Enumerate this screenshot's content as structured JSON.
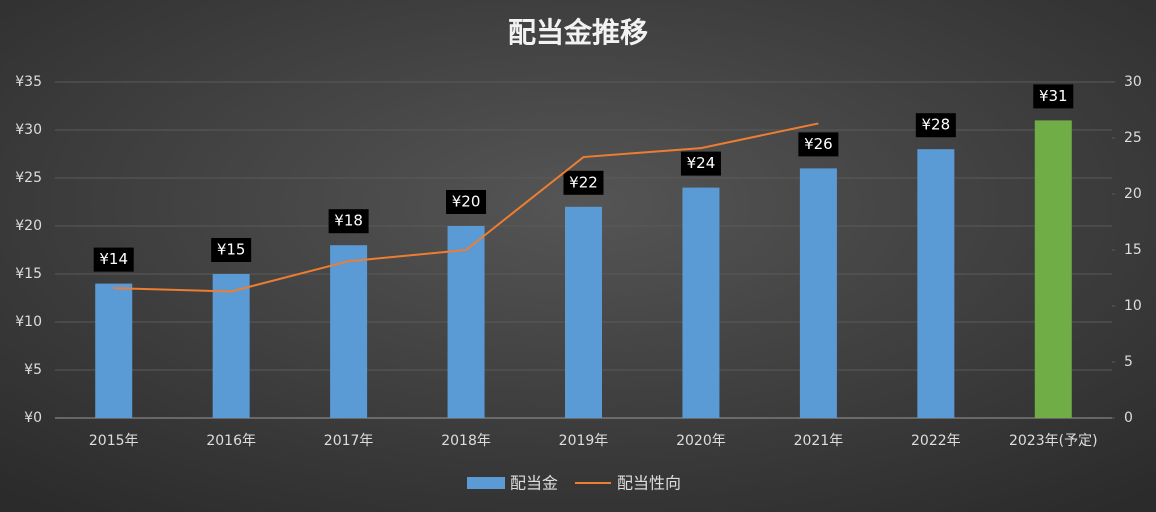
{
  "chart_data": {
    "type": "bar_line",
    "title": "配当金推移",
    "categories": [
      "2015年",
      "2016年",
      "2017年",
      "2018年",
      "2019年",
      "2020年",
      "2021年",
      "2022年",
      "2023年(予定)"
    ],
    "series": [
      {
        "name": "配当金",
        "color": "#5b9bd5",
        "colors": [
          "#5b9bd5",
          "#5b9bd5",
          "#5b9bd5",
          "#5b9bd5",
          "#5b9bd5",
          "#5b9bd5",
          "#5b9bd5",
          "#5b9bd5",
          "#70ad47"
        ],
        "values": [
          14,
          15,
          18,
          20,
          22,
          24,
          26,
          28,
          31
        ],
        "value_labels": [
          "¥14",
          "¥15",
          "¥18",
          "¥20",
          "¥22",
          "¥24",
          "¥26",
          "¥28",
          "¥31"
        ]
      },
      {
        "name": "配当性向",
        "color": "#ed7d31",
        "axis": "y2",
        "values": [
          11.6,
          11.3,
          14.0,
          15.0,
          23.3,
          24.1,
          26.3,
          null,
          null
        ]
      }
    ],
    "ylim": [
      0,
      35
    ],
    "yticks": [
      {
        "value": 0,
        "label": "¥0"
      },
      {
        "value": 5,
        "label": "¥5"
      },
      {
        "value": 10,
        "label": "¥10"
      },
      {
        "value": 15,
        "label": "¥15"
      },
      {
        "value": 20,
        "label": "¥20"
      },
      {
        "value": 25,
        "label": "¥25"
      },
      {
        "value": 30,
        "label": "¥30"
      },
      {
        "value": 35,
        "label": "¥35"
      }
    ],
    "y2lim": [
      0,
      30
    ],
    "y2ticks": [
      0,
      5,
      10,
      15,
      20,
      25,
      30
    ],
    "grid": true,
    "legend": "bottom"
  }
}
